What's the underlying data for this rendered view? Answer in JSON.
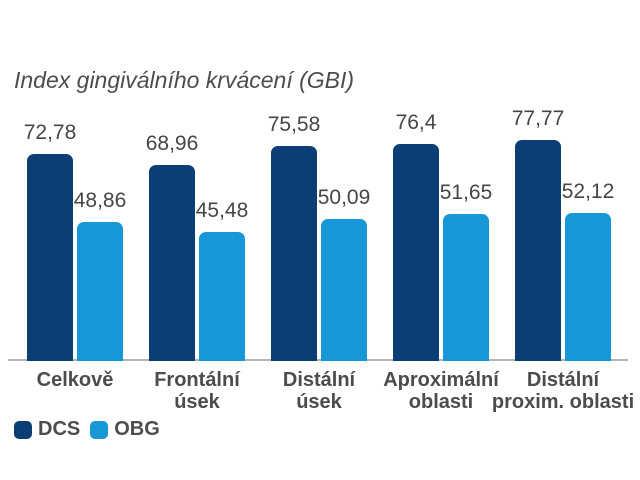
{
  "page": {
    "background": "#ffffff"
  },
  "chart_data": {
    "type": "bar",
    "title": "Index gingiválního krvácení (GBI)",
    "categories": [
      "Celkově",
      "Frontální úsek",
      "Distální úsek",
      "Aproximální oblasti",
      "Distální proxim. oblasti"
    ],
    "category_lines": [
      [
        "Celkově"
      ],
      [
        "Frontální",
        "úsek"
      ],
      [
        "Distální",
        "úsek"
      ],
      [
        "Aproximální",
        "oblasti"
      ],
      [
        "Distální",
        "proxim. oblasti"
      ]
    ],
    "series": [
      {
        "name": "DCS",
        "color": "#0a3e75",
        "values": [
          72.78,
          68.96,
          75.58,
          76.4,
          77.77
        ],
        "value_labels": [
          "72,78",
          "68,96",
          "75,58",
          "76,4",
          "77,77"
        ]
      },
      {
        "name": "OBG",
        "color": "#1897d6",
        "values": [
          48.86,
          45.48,
          50.09,
          51.65,
          52.12
        ],
        "value_labels": [
          "48,86",
          "45,48",
          "50,09",
          "51,65",
          "52,12"
        ]
      }
    ],
    "ylim": [
      0,
      80
    ],
    "grid": false,
    "legend_position": "bottom-left",
    "axis_line_color": "#b5b5b5"
  },
  "legend": {
    "items": [
      {
        "label": "DCS",
        "color": "#0a3e75"
      },
      {
        "label": "OBG",
        "color": "#1897d6"
      }
    ]
  },
  "colors": {
    "title_text": "#4d4d4d",
    "value_text": "#464646",
    "category_text": "#4c4c4c",
    "axis_line": "#b5b5b5"
  }
}
